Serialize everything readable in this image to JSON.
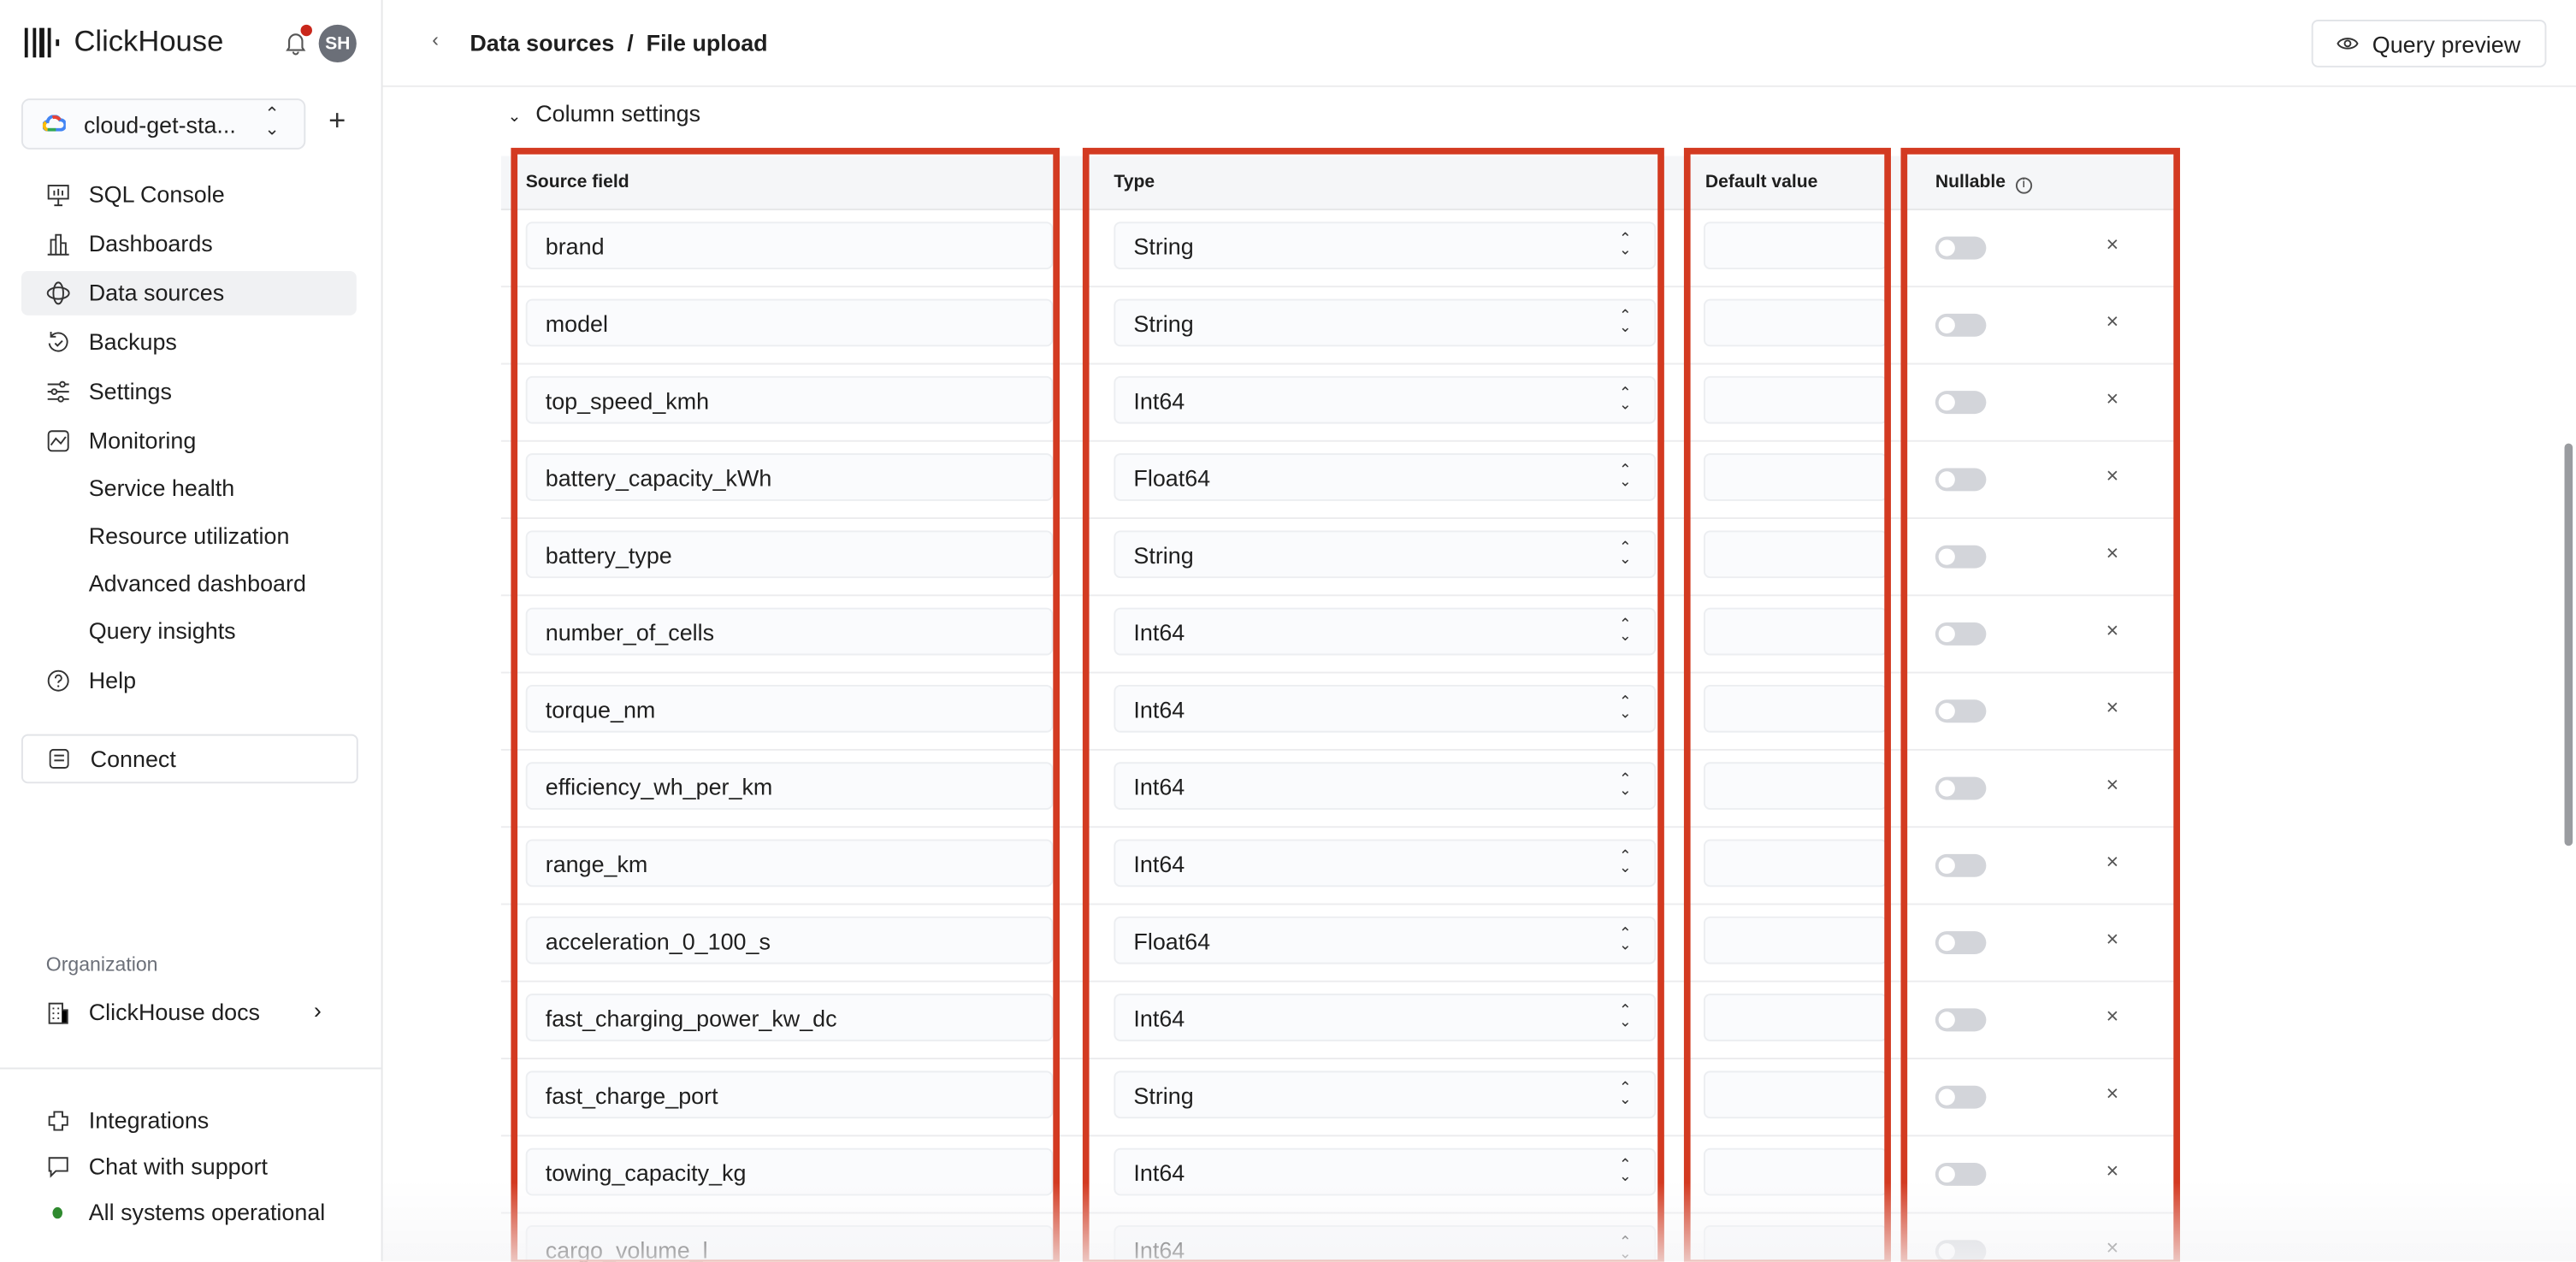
{
  "app": {
    "name": "ClickHouse",
    "avatar_initials": "SH",
    "notification_dot_color": "#c9271b"
  },
  "service": {
    "name": "cloud-get-sta..."
  },
  "nav": [
    {
      "label": "SQL Console",
      "icon": "sql-console-icon"
    },
    {
      "label": "Dashboards",
      "icon": "dashboards-icon"
    },
    {
      "label": "Data sources",
      "icon": "data-sources-icon",
      "active": true
    },
    {
      "label": "Backups",
      "icon": "backups-icon"
    },
    {
      "label": "Settings",
      "icon": "settings-icon"
    },
    {
      "label": "Monitoring",
      "icon": "monitoring-icon"
    }
  ],
  "monitoring_sub": [
    "Service health",
    "Resource utilization",
    "Advanced dashboard",
    "Query insights"
  ],
  "help": "Help",
  "connect": "Connect",
  "organization": {
    "label": "Organization",
    "name": "ClickHouse docs"
  },
  "footer": {
    "integrations": "Integrations",
    "chat": "Chat with support",
    "status": "All systems operational",
    "status_color": "#2f8a2f"
  },
  "header": {
    "breadcrumb": "Data sources  /  File upload",
    "query_preview": "Query preview"
  },
  "section": {
    "title": "Column settings"
  },
  "table": {
    "headers": {
      "source": "Source field",
      "type": "Type",
      "default": "Default value",
      "nullable": "Nullable"
    },
    "rows": [
      {
        "field": "brand",
        "type": "String",
        "nullable": false
      },
      {
        "field": "model",
        "type": "String",
        "nullable": false
      },
      {
        "field": "top_speed_kmh",
        "type": "Int64",
        "nullable": false
      },
      {
        "field": "battery_capacity_kWh",
        "type": "Float64",
        "nullable": false
      },
      {
        "field": "battery_type",
        "type": "String",
        "nullable": false
      },
      {
        "field": "number_of_cells",
        "type": "Int64",
        "nullable": false
      },
      {
        "field": "torque_nm",
        "type": "Int64",
        "nullable": false
      },
      {
        "field": "efficiency_wh_per_km",
        "type": "Int64",
        "nullable": false
      },
      {
        "field": "range_km",
        "type": "Int64",
        "nullable": false
      },
      {
        "field": "acceleration_0_100_s",
        "type": "Float64",
        "nullable": false
      },
      {
        "field": "fast_charging_power_kw_dc",
        "type": "Int64",
        "nullable": false
      },
      {
        "field": "fast_charge_port",
        "type": "String",
        "nullable": false
      },
      {
        "field": "towing_capacity_kg",
        "type": "Int64",
        "nullable": false
      },
      {
        "field": "cargo_volume_l",
        "type": "Int64",
        "nullable": false
      }
    ]
  },
  "highlight_color": "#d33a21"
}
